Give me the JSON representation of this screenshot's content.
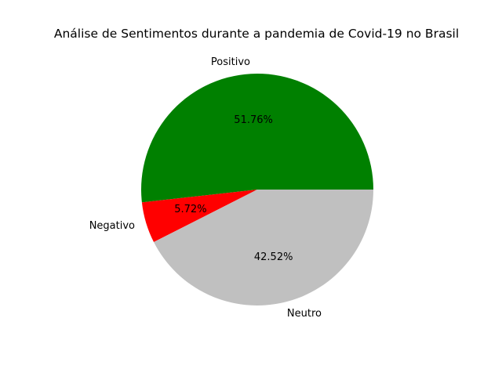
{
  "chart_data": {
    "type": "pie",
    "title": "Análise de Sentimentos durante a pandemia de Covid-19 no Brasil",
    "slices": [
      {
        "label": "Positivo",
        "value": 51.76,
        "pct_label": "51.76%",
        "color": "#008000"
      },
      {
        "label": "Negativo",
        "value": 5.72,
        "pct_label": "5.72%",
        "color": "#ff0000"
      },
      {
        "label": "Neutro",
        "value": 42.52,
        "pct_label": "42.52%",
        "color": "#c0c0c0"
      }
    ],
    "start_angle_deg": 0,
    "direction": "counterclockwise"
  }
}
